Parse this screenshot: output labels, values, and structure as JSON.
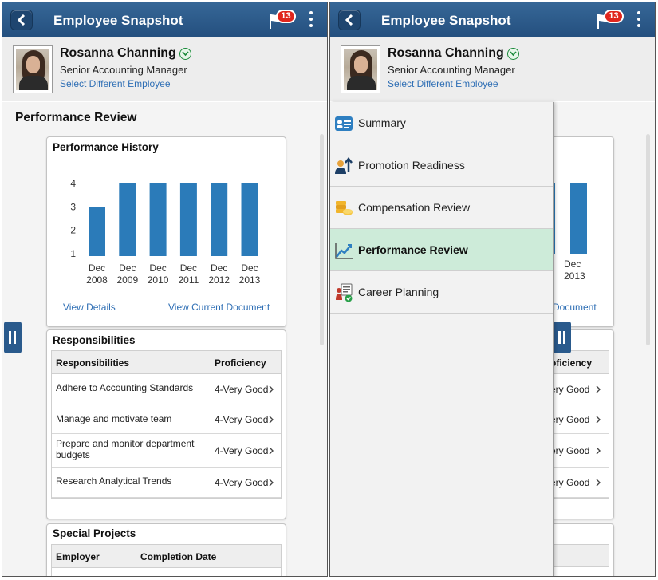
{
  "header": {
    "title": "Employee Snapshot",
    "notification_count": "13"
  },
  "employee": {
    "name": "Rosanna Channing",
    "job_title": "Senior Accounting Manager",
    "change_link": "Select Different Employee"
  },
  "performance_review": {
    "section_title": "Performance Review",
    "history_title": "Performance History",
    "view_details": "View Details",
    "view_current_document": "View Current Document",
    "view_current_document_partial": "Document"
  },
  "chart_data": {
    "type": "bar",
    "categories": [
      [
        "Dec",
        "2008"
      ],
      [
        "Dec",
        "2009"
      ],
      [
        "Dec",
        "2010"
      ],
      [
        "Dec",
        "2011"
      ],
      [
        "Dec",
        "2012"
      ],
      [
        "Dec",
        "2013"
      ]
    ],
    "values": [
      3,
      4,
      4,
      4,
      4,
      4
    ],
    "yticks": [
      "1",
      "2",
      "3",
      "4"
    ],
    "ylim": [
      1,
      4
    ],
    "color": "#2b7bb9",
    "grid": false
  },
  "responsibilities": {
    "title": "Responsibilities",
    "col_responsibilities": "Responsibilities",
    "col_proficiency": "Proficiency",
    "col_proficiency_partial": "oficiency",
    "rows": [
      {
        "name": "Adhere to Accounting Standards",
        "proficiency": "4-Very Good",
        "partial": "ery Good"
      },
      {
        "name": "Manage and motivate team",
        "proficiency": "4-Very Good",
        "partial": "ery Good"
      },
      {
        "name": "Prepare and monitor department budgets",
        "proficiency": "4-Very Good",
        "partial": "ery Good"
      },
      {
        "name": "Research Analytical Trends",
        "proficiency": "4-Very Good",
        "partial": "ery Good"
      }
    ]
  },
  "special_projects": {
    "title": "Special Projects",
    "col_employer": "Employer",
    "col_completion": "Completion Date"
  },
  "nav_menu": {
    "items": [
      {
        "label": "Summary",
        "icon": "summary-icon",
        "active": false
      },
      {
        "label": "Promotion Readiness",
        "icon": "promotion-icon",
        "active": false
      },
      {
        "label": "Compensation Review",
        "icon": "compensation-icon",
        "active": false
      },
      {
        "label": "Performance Review",
        "icon": "performance-icon",
        "active": true
      },
      {
        "label": "Career Planning",
        "icon": "career-icon",
        "active": false
      }
    ]
  },
  "colors": {
    "header_blue": "#2a5a8c",
    "link_blue": "#2f6fb5",
    "bar_blue": "#2b7bb9",
    "active_menu": "#cdebd9",
    "badge_red": "#e0261d"
  }
}
